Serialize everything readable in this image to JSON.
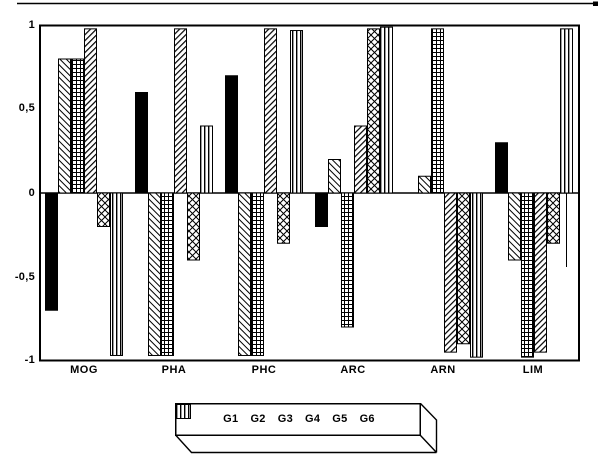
{
  "colors": {
    "foreground": "#000000",
    "background": "#ffffff"
  },
  "chart_data": {
    "type": "bar",
    "title": "",
    "xlabel": "",
    "ylabel": "",
    "ylim": [
      -1,
      1
    ],
    "grid": false,
    "legend_position": "bottom",
    "categories": [
      "MOG",
      "PHA",
      "PHC",
      "ARC",
      "ARN",
      "LIM"
    ],
    "y_tick_labels": [
      "1",
      "0,5",
      "0",
      "-0,5",
      "-1"
    ],
    "y_tick_values": [
      1,
      0.5,
      0,
      -0.5,
      -1
    ],
    "series": [
      {
        "name": "G1",
        "pattern": "solid",
        "values": [
          -0.7,
          0.6,
          0.7,
          -0.2,
          0,
          0.3
        ]
      },
      {
        "name": "G2",
        "pattern": "diag-forward",
        "values": [
          0.8,
          -0.97,
          -0.97,
          0.2,
          0.1,
          -0.4
        ]
      },
      {
        "name": "G3",
        "pattern": "grid",
        "values": [
          0.8,
          -0.97,
          -0.97,
          -0.8,
          0.98,
          -0.98
        ]
      },
      {
        "name": "G4",
        "pattern": "diag-back",
        "values": [
          0.98,
          0.98,
          0.98,
          0.4,
          -0.95,
          -0.95
        ]
      },
      {
        "name": "G5",
        "pattern": "diamond",
        "values": [
          -0.2,
          -0.4,
          -0.3,
          0.98,
          -0.9,
          -0.3
        ]
      },
      {
        "name": "G6",
        "pattern": "vertical",
        "values": [
          -0.97,
          0.4,
          0.97,
          0.99,
          -0.98,
          0.98
        ]
      }
    ]
  }
}
